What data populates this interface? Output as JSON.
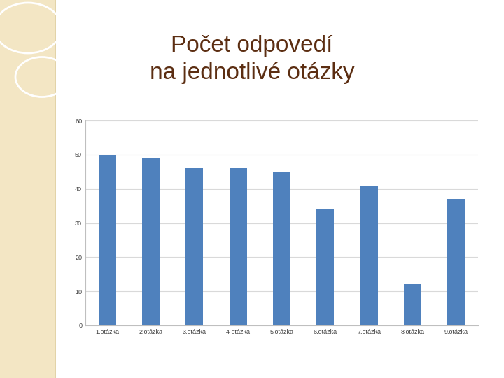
{
  "chart_data": {
    "type": "bar",
    "title": "Počet odpovedí\nna jednotlivé otázky",
    "categories": [
      "1.otázka",
      "2.otázka",
      "3.otázka",
      "4 otázka",
      "5.otázka",
      "6.otázka",
      "7.otázka",
      "8.otázka",
      "9.otázka"
    ],
    "values": [
      50,
      49,
      46,
      46,
      45,
      34,
      41,
      12,
      37
    ],
    "color": "#4f81bd",
    "ylim": [
      0,
      60
    ],
    "yticks": [
      0,
      10,
      20,
      30,
      40,
      50,
      60
    ],
    "grid": true
  }
}
